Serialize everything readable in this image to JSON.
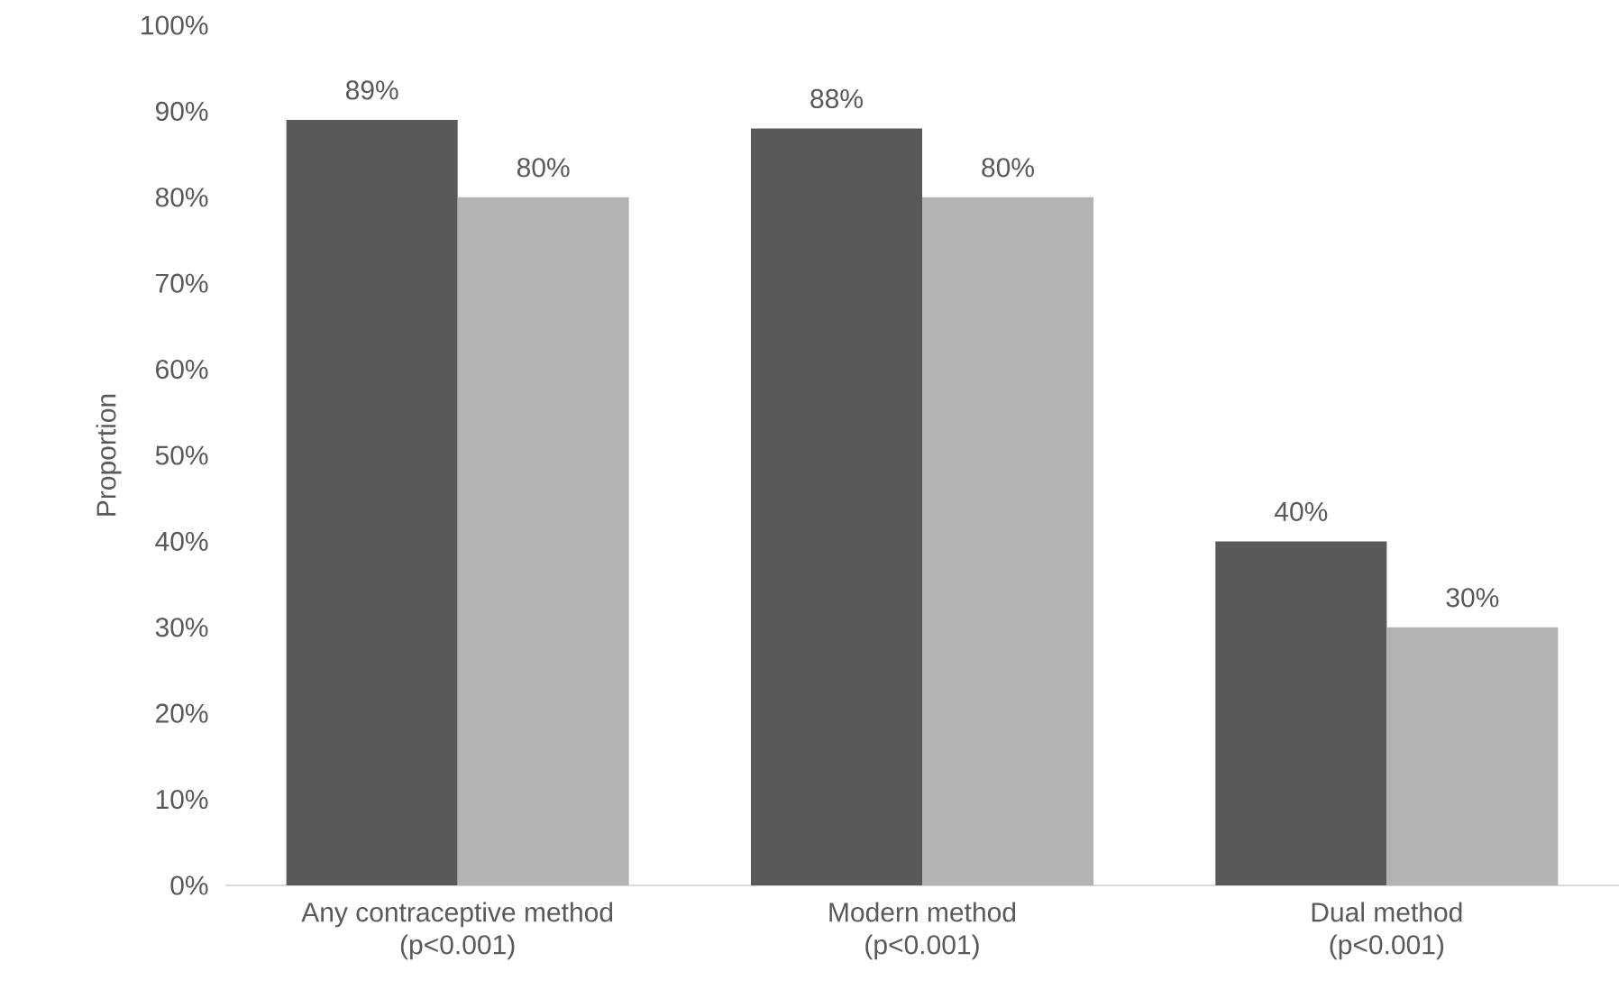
{
  "chart_data": {
    "type": "bar",
    "ylabel": "Proportion",
    "categories": [
      "Any contraceptive method (p<0.001)",
      "Modern method (p<0.001)",
      "Dual method (p<0.001)"
    ],
    "series": [
      {
        "color": "#595959",
        "values": [
          89,
          88,
          40
        ],
        "value_labels": [
          "89%",
          "88%",
          "40%"
        ]
      },
      {
        "color": "#b3b3b3",
        "values": [
          80,
          80,
          30
        ],
        "value_labels": [
          "80%",
          "80%",
          "30%"
        ]
      }
    ],
    "ylim": [
      0,
      100
    ],
    "yticks": [
      {
        "value": 0,
        "label": "0%"
      },
      {
        "value": 10,
        "label": "10%"
      },
      {
        "value": 20,
        "label": "20%"
      },
      {
        "value": 30,
        "label": "30%"
      },
      {
        "value": 40,
        "label": "40%"
      },
      {
        "value": 50,
        "label": "50%"
      },
      {
        "value": 60,
        "label": "60%"
      },
      {
        "value": 70,
        "label": "70%"
      },
      {
        "value": 80,
        "label": "80%"
      },
      {
        "value": 90,
        "label": "90%"
      },
      {
        "value": 100,
        "label": "100%"
      }
    ]
  }
}
